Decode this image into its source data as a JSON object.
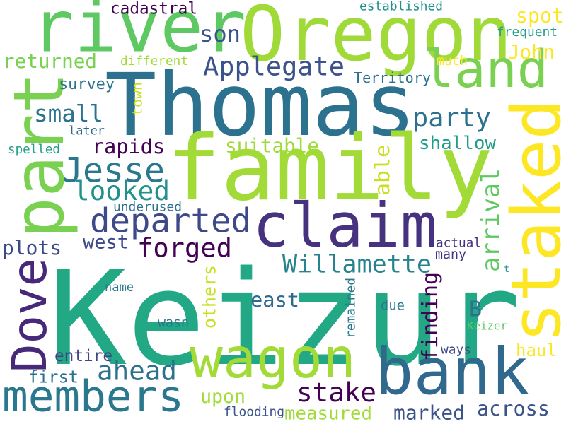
{
  "word_cloud": {
    "words": [
      {
        "text": "Keizur",
        "color": "#22a884",
        "vertical": false
      },
      {
        "text": "Thomas",
        "color": "#2c728e",
        "vertical": false
      },
      {
        "text": "family",
        "color": "#a2da37",
        "vertical": false
      },
      {
        "text": "Oregon",
        "color": "#a0da39",
        "vertical": false
      },
      {
        "text": "river",
        "color": "#5ec962",
        "vertical": false
      },
      {
        "text": "part",
        "color": "#7ad151",
        "vertical": true
      },
      {
        "text": "land",
        "color": "#7ad151",
        "vertical": false
      },
      {
        "text": "staked",
        "color": "#fde725",
        "vertical": true
      },
      {
        "text": "claim",
        "color": "#46327e",
        "vertical": false
      },
      {
        "text": "wagon",
        "color": "#a2da37",
        "vertical": false
      },
      {
        "text": "bank",
        "color": "#31688e",
        "vertical": false
      },
      {
        "text": "members",
        "color": "#2a788e",
        "vertical": false
      },
      {
        "text": "Dove",
        "color": "#482878",
        "vertical": true
      },
      {
        "text": "Applegate",
        "color": "#3b528b",
        "vertical": false
      },
      {
        "text": "Jesse",
        "color": "#2a788e",
        "vertical": false
      },
      {
        "text": "departed",
        "color": "#3e4989",
        "vertical": false
      },
      {
        "text": "looked",
        "color": "#21918c",
        "vertical": false
      },
      {
        "text": "Willamette",
        "color": "#26828e",
        "vertical": false
      },
      {
        "text": "forged",
        "color": "#440154",
        "vertical": false
      },
      {
        "text": "ahead",
        "color": "#2c728e",
        "vertical": false
      },
      {
        "text": "stake",
        "color": "#440154",
        "vertical": false
      },
      {
        "text": "party",
        "color": "#2c728e",
        "vertical": false
      },
      {
        "text": "small",
        "color": "#2c728e",
        "vertical": false
      },
      {
        "text": "returned",
        "color": "#7ad151",
        "vertical": false
      },
      {
        "text": "son",
        "color": "#3b528b",
        "vertical": false
      },
      {
        "text": "spot",
        "color": "#fde725",
        "vertical": false
      },
      {
        "text": "John",
        "color": "#fde725",
        "vertical": false
      },
      {
        "text": "shallow",
        "color": "#1f9e89",
        "vertical": false
      },
      {
        "text": "suitable",
        "color": "#a0da39",
        "vertical": false
      },
      {
        "text": "rapids",
        "color": "#440154",
        "vertical": false
      },
      {
        "text": "arrival",
        "color": "#5ec962",
        "vertical": true
      },
      {
        "text": "able",
        "color": "#c8e020",
        "vertical": true
      },
      {
        "text": "finding",
        "color": "#440154",
        "vertical": true
      },
      {
        "text": "plots",
        "color": "#3e4989",
        "vertical": false
      },
      {
        "text": "west",
        "color": "#3e4989",
        "vertical": false
      },
      {
        "text": "east",
        "color": "#31688e",
        "vertical": false
      },
      {
        "text": "others",
        "color": "#c8e020",
        "vertical": true
      },
      {
        "text": "upon",
        "color": "#a2da37",
        "vertical": false
      },
      {
        "text": "haul",
        "color": "#fde725",
        "vertical": false
      },
      {
        "text": "marked",
        "color": "#3b528b",
        "vertical": false
      },
      {
        "text": "across",
        "color": "#3b528b",
        "vertical": false
      },
      {
        "text": "measured",
        "color": "#a2da37",
        "vertical": false
      },
      {
        "text": "first",
        "color": "#2c728e",
        "vertical": false
      },
      {
        "text": "entire",
        "color": "#414487",
        "vertical": false
      },
      {
        "text": "B",
        "color": "#2c728e",
        "vertical": false
      },
      {
        "text": "cadastral",
        "color": "#440154",
        "vertical": false
      },
      {
        "text": "established",
        "color": "#21918c",
        "vertical": false
      },
      {
        "text": "frequent",
        "color": "#1f9e89",
        "vertical": false
      },
      {
        "text": "different",
        "color": "#a2da37",
        "vertical": false
      },
      {
        "text": "much",
        "color": "#fde725",
        "vertical": false
      },
      {
        "text": "Territory",
        "color": "#2c728e",
        "vertical": false
      },
      {
        "text": "survey",
        "color": "#2c728e",
        "vertical": false
      },
      {
        "text": "town",
        "color": "#c8e020",
        "vertical": true
      },
      {
        "text": "later",
        "color": "#31688e",
        "vertical": false
      },
      {
        "text": "spelled",
        "color": "#1f9e89",
        "vertical": false
      },
      {
        "text": "underused",
        "color": "#2c728e",
        "vertical": false
      },
      {
        "text": "actual",
        "color": "#46327e",
        "vertical": false
      },
      {
        "text": "many",
        "color": "#46327e",
        "vertical": false
      },
      {
        "text": "t",
        "color": "#21918c",
        "vertical": false
      },
      {
        "text": "name",
        "color": "#2a788e",
        "vertical": false
      },
      {
        "text": "remained",
        "color": "#2a788e",
        "vertical": true
      },
      {
        "text": "due",
        "color": "#2a788e",
        "vertical": false
      },
      {
        "text": "wasn",
        "color": "#2a788e",
        "vertical": false
      },
      {
        "text": "Keizer",
        "color": "#5ec962",
        "vertical": false
      },
      {
        "text": "ways",
        "color": "#3e4989",
        "vertical": false
      },
      {
        "text": "flooding",
        "color": "#3b528b",
        "vertical": false
      }
    ]
  }
}
